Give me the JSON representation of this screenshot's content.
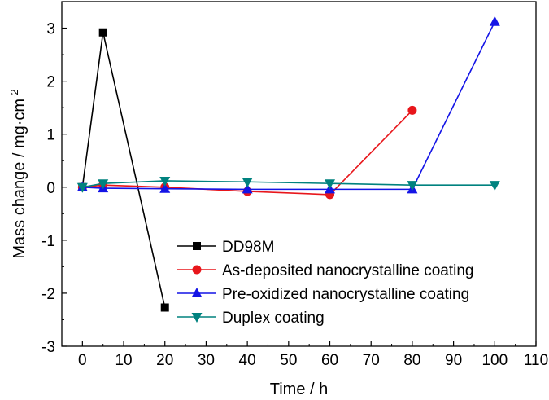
{
  "chart_data": {
    "type": "line",
    "title": "",
    "xlabel": "Time / h",
    "ylabel_main": "Mass change / mg·cm",
    "ylabel_sup": "-2",
    "xlim": [
      -5,
      110
    ],
    "ylim": [
      -3,
      3.5
    ],
    "xticks": [
      0,
      10,
      20,
      30,
      40,
      50,
      60,
      70,
      80,
      90,
      100,
      110
    ],
    "xtick_labels": [
      "0",
      "10",
      "20",
      "30",
      "40",
      "50",
      "60",
      "70",
      "80",
      "90",
      "100",
      "110"
    ],
    "yticks": [
      -3,
      -2,
      -1,
      0,
      1,
      2,
      3
    ],
    "ytick_labels": [
      "-3",
      "-2",
      "-1",
      "0",
      "1",
      "2",
      "3"
    ],
    "grid": false,
    "legend_position": "lower-center",
    "series": [
      {
        "name": "DD98M",
        "color": "#000000",
        "marker": "square",
        "x": [
          0,
          5,
          20
        ],
        "y": [
          0,
          2.92,
          -2.27
        ]
      },
      {
        "name": "As-deposited nanocrystalline coating",
        "color": "#e8161b",
        "marker": "circle",
        "x": [
          0,
          5,
          20,
          40,
          60,
          80
        ],
        "y": [
          0,
          0.04,
          0.0,
          -0.08,
          -0.14,
          1.45
        ]
      },
      {
        "name": "Pre-oxidized nanocrystalline coating",
        "color": "#1414e6",
        "marker": "triangle-up",
        "x": [
          0,
          5,
          20,
          40,
          60,
          80,
          100
        ],
        "y": [
          0,
          -0.02,
          -0.03,
          -0.04,
          -0.04,
          -0.04,
          3.12
        ]
      },
      {
        "name": "Duplex coating",
        "color": "#00827f",
        "marker": "triangle-down",
        "x": [
          0,
          5,
          20,
          40,
          60,
          80,
          100
        ],
        "y": [
          0,
          0.07,
          0.12,
          0.1,
          0.07,
          0.04,
          0.04
        ]
      }
    ]
  }
}
